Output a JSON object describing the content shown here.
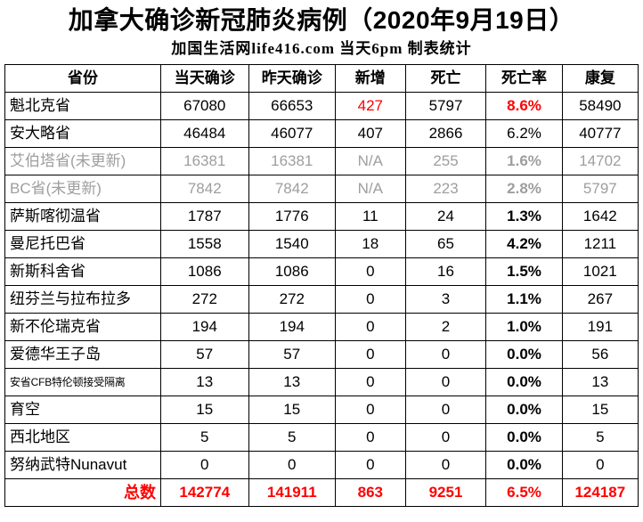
{
  "title": "加拿大确诊新冠肺炎病例（2020年9月19日）",
  "subtitle": "加国生活网life416.com 当天6pm 制表统计",
  "colors": {
    "accent_red": "#ff0000",
    "dim_gray": "#9e9e9e",
    "text": "#000000",
    "border": "#000000",
    "background": "#ffffff"
  },
  "chart_data": {
    "type": "table",
    "title": "加拿大确诊新冠肺炎病例（2020年9月19日）",
    "source_line": "加国生活网life416.com 当天6pm 制表统计",
    "columns": [
      "省份",
      "当天确诊",
      "昨天确诊",
      "新增",
      "死亡",
      "死亡率",
      "康复"
    ],
    "rows": [
      {
        "cells": [
          "魁北克省",
          "67080",
          "66653",
          "427",
          "5797",
          "8.6%",
          "58490"
        ],
        "styles": {
          "new_red": true,
          "rate_red": true,
          "rate_bold": true
        }
      },
      {
        "cells": [
          "安大略省",
          "46484",
          "46077",
          "407",
          "2866",
          "6.2%",
          "40777"
        ],
        "styles": {}
      },
      {
        "cells": [
          "艾伯塔省(未更新)",
          "16381",
          "16381",
          "N/A",
          "255",
          "1.6%",
          "14702"
        ],
        "styles": {
          "dim": true,
          "rate_bold": true
        }
      },
      {
        "cells": [
          "BC省(未更新)",
          "7842",
          "7842",
          "N/A",
          "223",
          "2.8%",
          "5797"
        ],
        "styles": {
          "dim": true,
          "rate_bold": true
        }
      },
      {
        "cells": [
          "萨斯喀彻温省",
          "1787",
          "1776",
          "11",
          "24",
          "1.3%",
          "1642"
        ],
        "styles": {
          "rate_bold": true
        }
      },
      {
        "cells": [
          "曼尼托巴省",
          "1558",
          "1540",
          "18",
          "65",
          "4.2%",
          "1211"
        ],
        "styles": {
          "rate_bold": true
        }
      },
      {
        "cells": [
          "新斯科舍省",
          "1086",
          "1086",
          "0",
          "16",
          "1.5%",
          "1021"
        ],
        "styles": {
          "rate_bold": true
        }
      },
      {
        "cells": [
          "纽芬兰与拉布拉多",
          "272",
          "272",
          "0",
          "3",
          "1.1%",
          "267"
        ],
        "styles": {
          "rate_bold": true
        }
      },
      {
        "cells": [
          "新不伦瑞克省",
          "194",
          "194",
          "0",
          "2",
          "1.0%",
          "191"
        ],
        "styles": {
          "rate_bold": true
        }
      },
      {
        "cells": [
          "爱德华王子岛",
          "57",
          "57",
          "0",
          "0",
          "0.0%",
          "56"
        ],
        "styles": {
          "rate_bold": true
        }
      },
      {
        "cells": [
          "安省CFB特伦顿接受隔离",
          "13",
          "13",
          "0",
          "0",
          "0.0%",
          "13"
        ],
        "styles": {
          "rate_bold": true,
          "small_label": true
        }
      },
      {
        "cells": [
          "育空",
          "15",
          "15",
          "0",
          "0",
          "0.0%",
          "15"
        ],
        "styles": {
          "rate_bold": true
        }
      },
      {
        "cells": [
          "西北地区",
          "5",
          "5",
          "0",
          "0",
          "0.0%",
          "5"
        ],
        "styles": {
          "rate_bold": true
        }
      },
      {
        "cells": [
          "努纳武特Nunavut",
          "0",
          "0",
          "0",
          "0",
          "0.0%",
          "0"
        ],
        "styles": {
          "rate_bold": true
        }
      }
    ],
    "total_row": {
      "cells": [
        "总数",
        "142774",
        "141911",
        "863",
        "9251",
        "6.5%",
        "124187"
      ],
      "styles": {
        "total": true
      }
    },
    "layout_hints": {
      "grid": true,
      "header_row": true,
      "dim_rows_meaning": "未更新 (not updated)",
      "red_meaning": "highlight / totals"
    }
  }
}
